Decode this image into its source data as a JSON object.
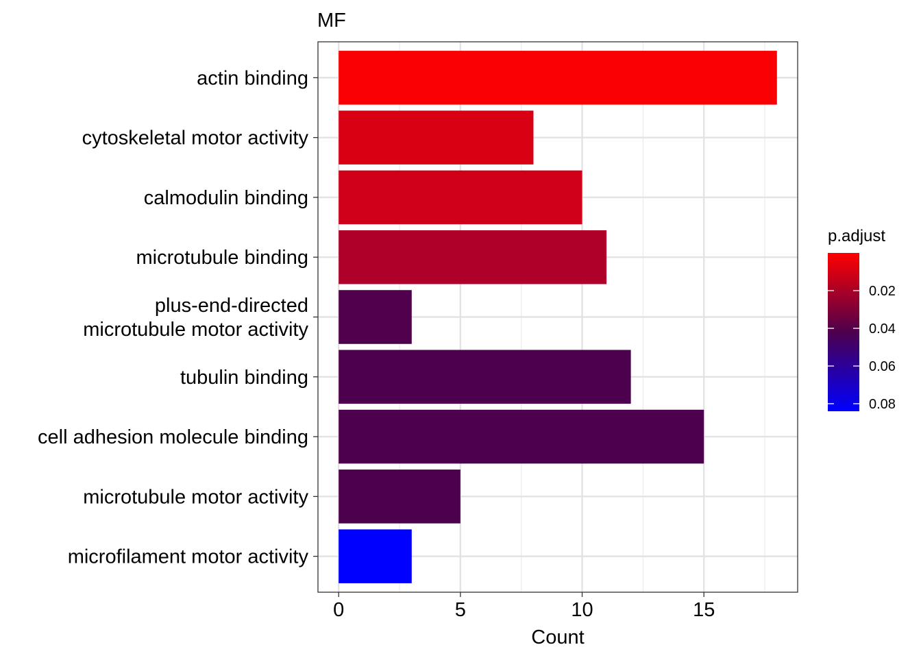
{
  "chart_data": {
    "type": "bar",
    "orientation": "horizontal",
    "title": "MF",
    "xlabel": "Count",
    "ylabel": "",
    "xlim": [
      -0.85,
      18.85
    ],
    "xticks": [
      0,
      5,
      10,
      15
    ],
    "categories": [
      "actin binding",
      "cytoskeletal motor activity",
      "calmodulin binding",
      "microtubule binding",
      "plus-end-directed microtubule motor activity",
      "tubulin binding",
      "cell adhesion molecule binding",
      "microtubule motor activity",
      "microfilament motor activity"
    ],
    "category_label_lines": [
      [
        "actin binding"
      ],
      [
        "cytoskeletal motor activity"
      ],
      [
        "calmodulin binding"
      ],
      [
        "microtubule binding"
      ],
      [
        "plus-end-directed",
        "microtubule motor activity"
      ],
      [
        "tubulin binding"
      ],
      [
        "cell adhesion molecule binding"
      ],
      [
        "microtubule motor activity"
      ],
      [
        "microfilament motor activity"
      ]
    ],
    "values": [
      18,
      8,
      10,
      11,
      3,
      12,
      15,
      5,
      3
    ],
    "p_adjust": [
      0.001,
      0.007,
      0.009,
      0.016,
      0.041,
      0.042,
      0.042,
      0.042,
      0.084
    ],
    "grid": true,
    "legend": {
      "title": "p.adjust",
      "placement": "right",
      "ticks": [
        0.02,
        0.04,
        0.06,
        0.08
      ],
      "tick_labels": [
        "0.02",
        "0.04",
        "0.06",
        "0.08"
      ],
      "range": [
        0.0,
        0.084
      ],
      "color_low_value": "#FF0000",
      "color_high_value": "#0000FF"
    }
  }
}
